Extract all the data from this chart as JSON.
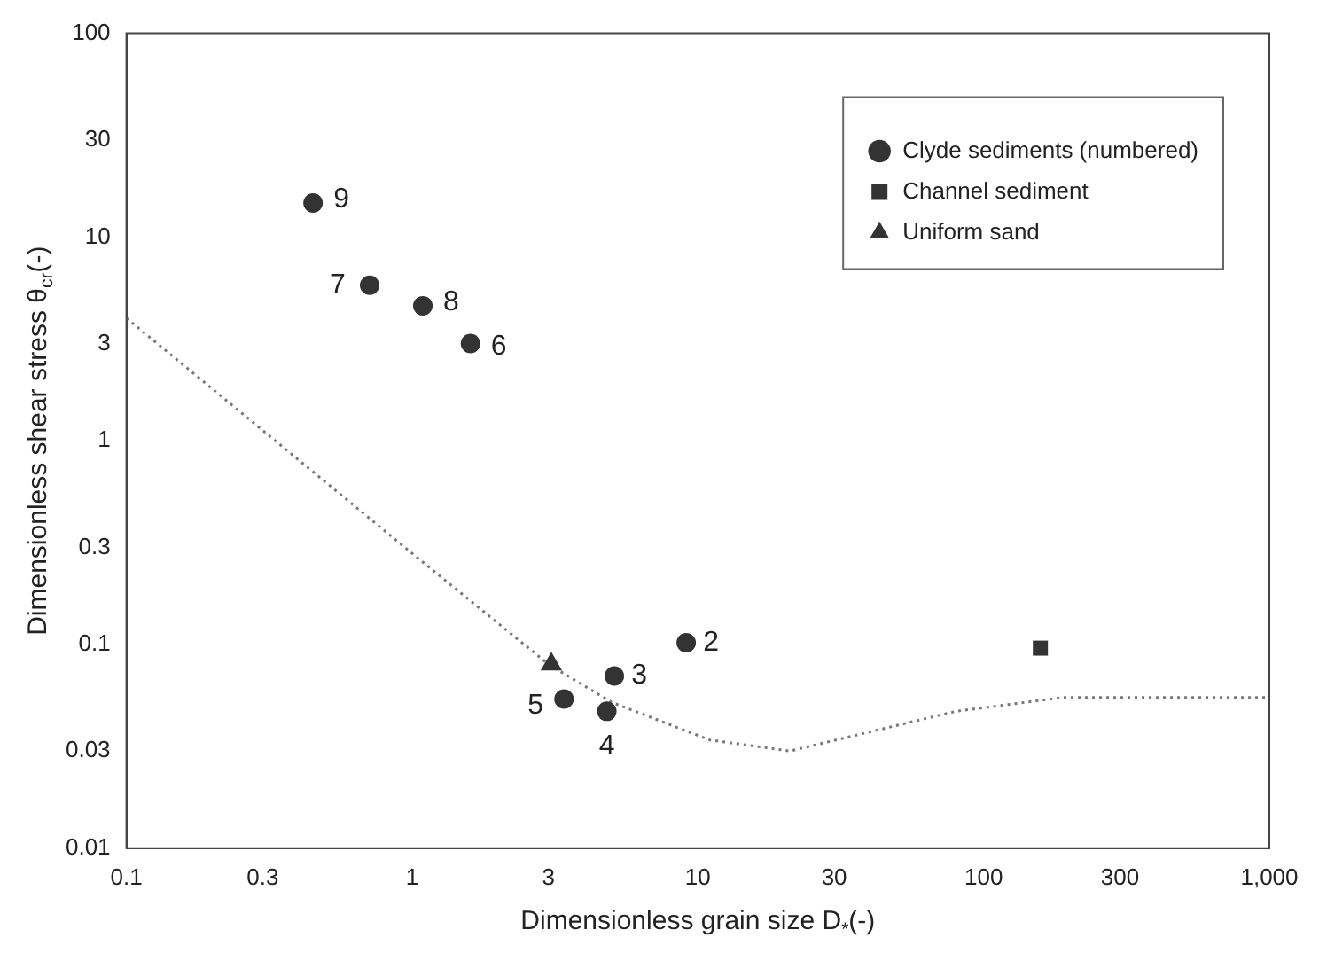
{
  "chart_data": {
    "type": "scatter",
    "xlabel": "Dimensionless grain size D$_{*}$(-)",
    "ylabel": "Dimensionless shear stress θ$_{cr}$(-)",
    "log": "xy",
    "xlim": [
      0.1,
      1000
    ],
    "ylim": [
      0.01,
      100
    ],
    "xticks": [
      0.1,
      0.3,
      1,
      3,
      10,
      30,
      100,
      300,
      {
        "value": 1000,
        "label": "1,000"
      }
    ],
    "yticks": [
      0.01,
      0.03,
      0.1,
      0.3,
      1,
      3,
      10,
      30,
      100
    ],
    "grid": false,
    "legend": "top right",
    "series": [
      {
        "name": "Clyde sediments (numbered)",
        "color": "#333333",
        "marker": "circle",
        "x": [
          9.1,
          5.1,
          4.8,
          3.4,
          1.6,
          0.71,
          1.09,
          0.45
        ],
        "values": [
          0.102,
          0.07,
          0.047,
          0.054,
          3.0,
          5.8,
          4.6,
          14.7
        ]
      },
      {
        "name": "Channel sediment",
        "color": "#333333",
        "marker": "square",
        "x": [
          158
        ],
        "values": [
          0.096
        ]
      },
      {
        "name": "Uniform sand",
        "color": "#333333",
        "marker": "triangle",
        "x": [
          3.07
        ],
        "values": [
          0.08
        ]
      },
      {
        "type": "line",
        "color": "#777777",
        "marker": "none",
        "line_style": "dotted",
        "x": [
          0.1,
          1,
          3,
          5,
          11,
          21,
          80,
          190,
          1000
        ],
        "values": [
          4,
          0.28,
          0.08,
          0.052,
          0.034,
          0.03,
          0.047,
          0.055,
          0.055
        ]
      }
    ],
    "annotations": [
      {
        "text": "2",
        "x": 9.1,
        "y": 0.102
      },
      {
        "text": "3",
        "x": 5.1,
        "y": 0.07
      },
      {
        "text": "4",
        "x": 4.8,
        "y": 0.047
      },
      {
        "text": "5",
        "x": 3.4,
        "y": 0.054
      },
      {
        "text": "6",
        "x": 1.6,
        "y": 3.0
      },
      {
        "text": "7",
        "x": 0.71,
        "y": 5.8
      },
      {
        "text": "8",
        "x": 1.09,
        "y": 4.6
      },
      {
        "text": "9",
        "x": 0.45,
        "y": 14.7
      }
    ]
  }
}
